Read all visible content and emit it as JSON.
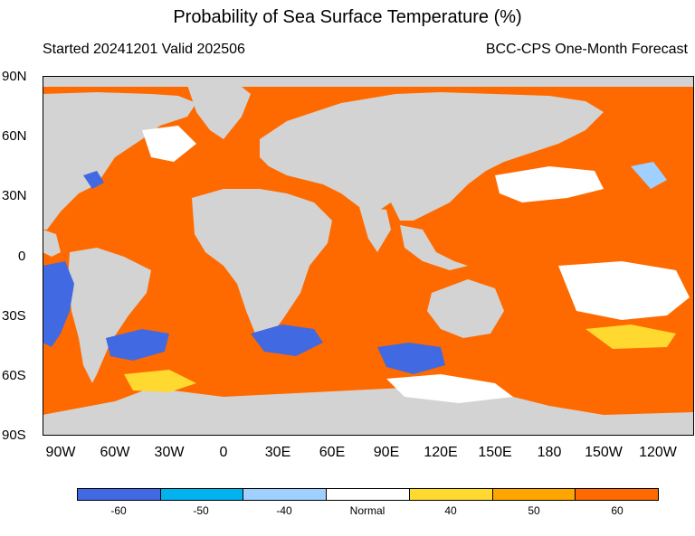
{
  "title": "Probability of Sea Surface Temperature (%)",
  "subtitle_left": "Started 20241201  Valid 202506",
  "subtitle_right": "BCC-CPS One-Month Forecast",
  "y_labels": [
    "90N",
    "60N",
    "30N",
    "0",
    "30S",
    "60S",
    "90S"
  ],
  "x_labels": [
    "90W",
    "60W",
    "30W",
    "0",
    "30E",
    "60E",
    "90E",
    "120E",
    "150E",
    "180",
    "150W",
    "120W"
  ],
  "colorbar": {
    "labels": [
      "-60",
      "-50",
      "-40",
      "Normal",
      "40",
      "50",
      "60"
    ],
    "colors": [
      "#4169e1",
      "#00b2ee",
      "#9fd0ff",
      "#ffffff",
      "#ffd92f",
      "#ffa500",
      "#ff6a00"
    ]
  },
  "colors": {
    "land": "#d3d3d3",
    "ocean_warm": "#ff6a00"
  }
}
